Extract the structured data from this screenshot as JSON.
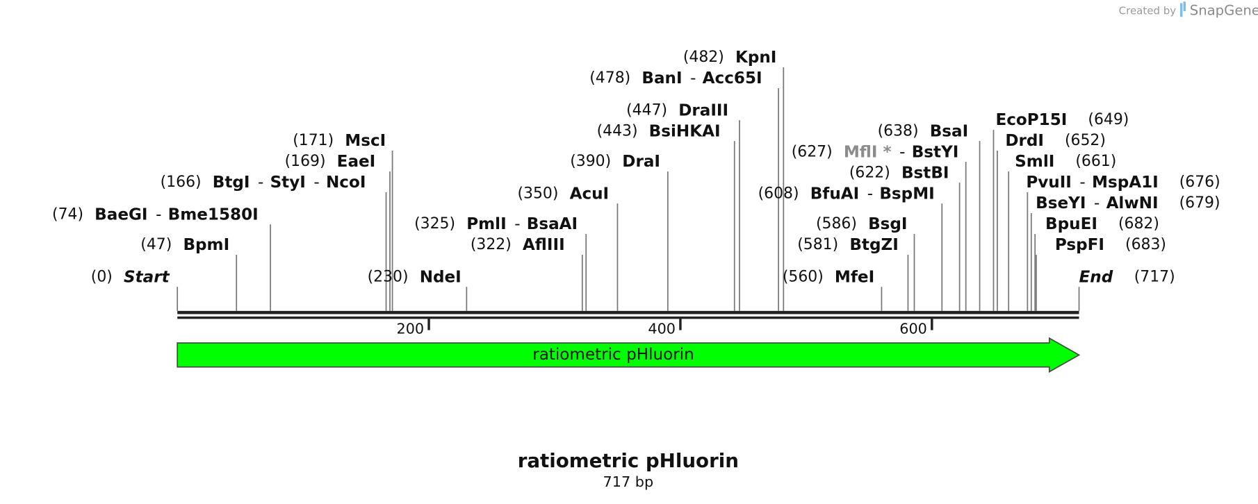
{
  "credit": {
    "prefix": "Created by",
    "brand": "SnapGene"
  },
  "title": "ratiometric pHluorin",
  "subtitle": "717 bp",
  "ruler": {
    "length": 717,
    "ticks": [
      200,
      400,
      600
    ]
  },
  "feature": {
    "label": "ratiometric pHluorin",
    "start": 0,
    "end": 717,
    "color": "#00ff00"
  },
  "sites": [
    {
      "position": {
        "value": 0,
        "label": "(0)"
      },
      "names": [
        "Start"
      ],
      "italic": true
    },
    {
      "position": {
        "value": 47,
        "label": "(47)"
      },
      "names": [
        "BpmI"
      ]
    },
    {
      "position": {
        "value": 74,
        "label": "(74)"
      },
      "names": [
        "BaeGI",
        "-",
        "Bme1580I"
      ]
    },
    {
      "position": {
        "value": 166,
        "label": "(166)"
      },
      "names": [
        "BtgI",
        "-",
        "StyI",
        "-",
        "NcoI"
      ]
    },
    {
      "position": {
        "value": 169,
        "label": "(169)"
      },
      "names": [
        "EaeI"
      ]
    },
    {
      "position": {
        "value": 171,
        "label": "(171)"
      },
      "names": [
        "MscI"
      ]
    },
    {
      "position": {
        "value": 230,
        "label": "(230)"
      },
      "names": [
        "NdeI"
      ]
    },
    {
      "position": {
        "value": 322,
        "label": "(322)"
      },
      "names": [
        "AflIII"
      ]
    },
    {
      "position": {
        "value": 325,
        "label": "(325)"
      },
      "names": [
        "PmlI",
        "-",
        "BsaAI"
      ]
    },
    {
      "position": {
        "value": 350,
        "label": "(350)"
      },
      "names": [
        "AcuI"
      ]
    },
    {
      "position": {
        "value": 390,
        "label": "(390)"
      },
      "names": [
        "DraI"
      ]
    },
    {
      "position": {
        "value": 443,
        "label": "(443)"
      },
      "names": [
        "BsiHKAI"
      ]
    },
    {
      "position": {
        "value": 447,
        "label": "(447)"
      },
      "names": [
        "DraIII"
      ]
    },
    {
      "position": {
        "value": 478,
        "label": "(478)"
      },
      "names": [
        "BanI",
        "-",
        "Acc65I"
      ]
    },
    {
      "position": {
        "value": 482,
        "label": "(482)"
      },
      "names": [
        "KpnI"
      ]
    },
    {
      "position": {
        "value": 560,
        "label": "(560)"
      },
      "names": [
        "MfeI"
      ]
    },
    {
      "position": {
        "value": 581,
        "label": "(581)"
      },
      "names": [
        "BtgZI"
      ]
    },
    {
      "position": {
        "value": 586,
        "label": "(586)"
      },
      "names": [
        "BsgI"
      ]
    },
    {
      "position": {
        "value": 608,
        "label": "(608)"
      },
      "names": [
        "BfuAI",
        "-",
        "BspMI"
      ]
    },
    {
      "position": {
        "value": 622,
        "label": "(622)"
      },
      "names": [
        "BstBI"
      ]
    },
    {
      "position": {
        "value": 627,
        "label": "(627)"
      },
      "names": [
        {
          "text": "MflI *",
          "color": "#8c8c8c"
        },
        "-",
        "BstYI"
      ]
    },
    {
      "position": {
        "value": 638,
        "label": "(638)"
      },
      "names": [
        "BsaI"
      ]
    },
    {
      "position": {
        "value": 649,
        "label": "(649)"
      },
      "names": [
        "EcoP15I"
      ]
    },
    {
      "position": {
        "value": 652,
        "label": "(652)"
      },
      "names": [
        "DrdI"
      ]
    },
    {
      "position": {
        "value": 661,
        "label": "(661)"
      },
      "names": [
        "SmlI"
      ]
    },
    {
      "position": {
        "value": 676,
        "label": "(676)"
      },
      "names": [
        "PvuII",
        "-",
        "MspA1I"
      ]
    },
    {
      "position": {
        "value": 679,
        "label": "(679)"
      },
      "names": [
        "BseYI",
        "-",
        "AlwNI"
      ]
    },
    {
      "position": {
        "value": 682,
        "label": "(682)"
      },
      "names": [
        "BpuEI"
      ]
    },
    {
      "position": {
        "value": 683,
        "label": "(683)"
      },
      "names": [
        "PspFI"
      ]
    },
    {
      "position": {
        "value": 717,
        "label": "(717)"
      },
      "names": [
        "End"
      ],
      "italic": true
    }
  ]
}
